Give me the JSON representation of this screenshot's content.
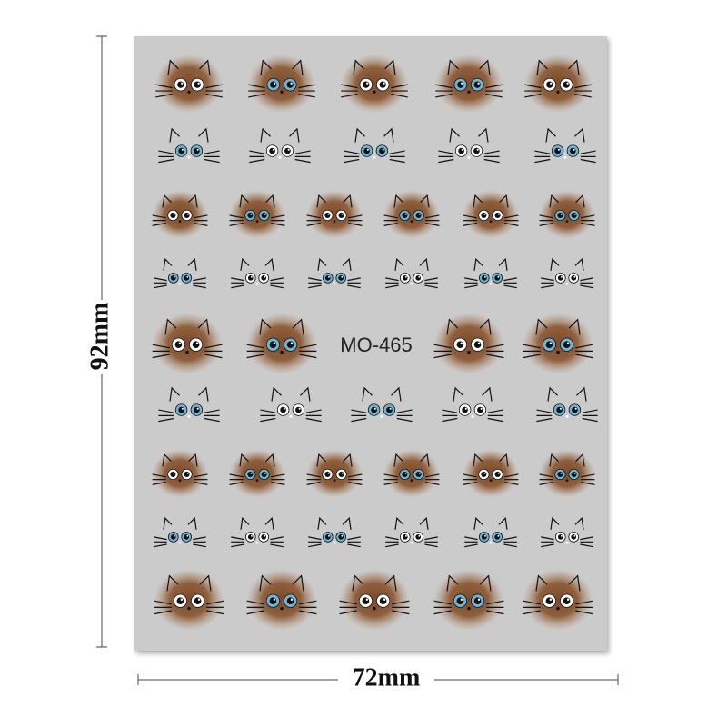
{
  "dimensions": {
    "height": "92mm",
    "width": "72mm"
  },
  "sheet": {
    "code": "MO-465"
  }
}
